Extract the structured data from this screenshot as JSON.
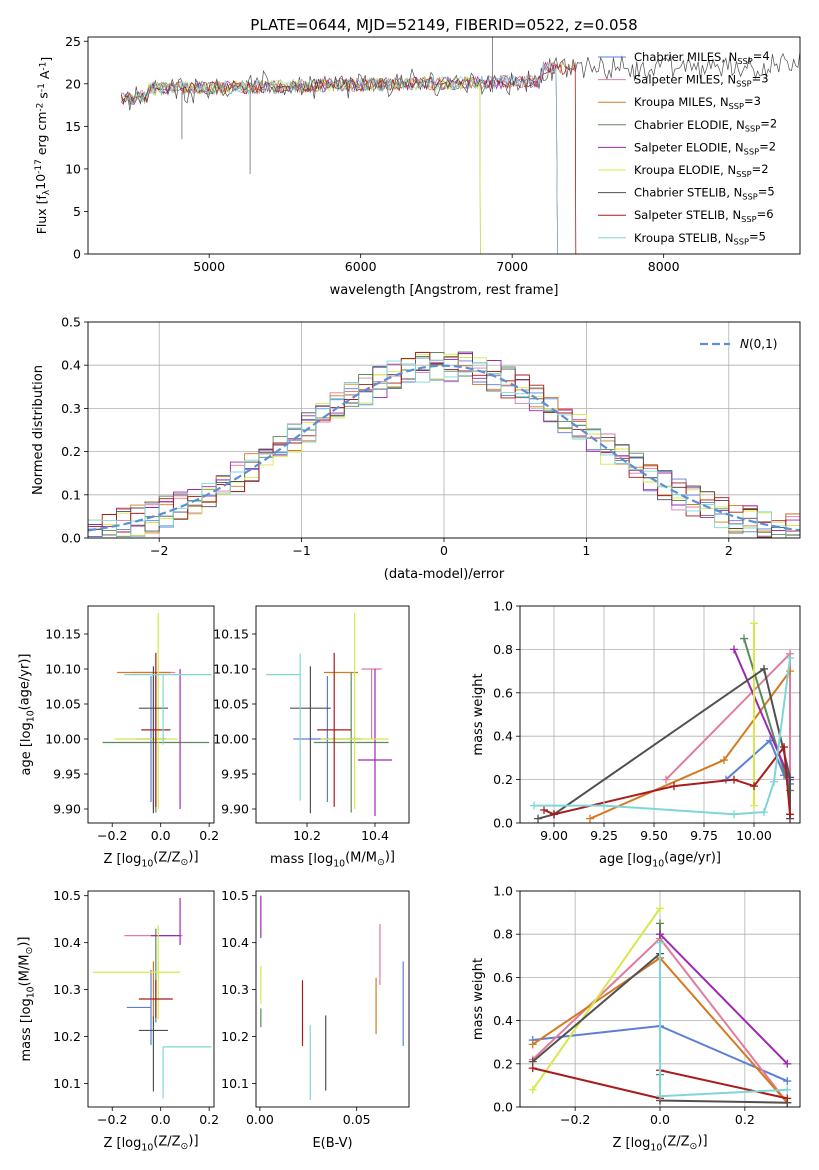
{
  "figure_title": "PLATE=0644, MJD=52149, FIBERID=0522, z=0.058",
  "colors": {
    "Chabrier MILES": "#5b7fd6",
    "Salpeter MILES": "#e17c9c",
    "Kroupa MILES": "#d47a22",
    "Chabrier ELODIE": "#5a8a5a",
    "Salpeter ELODIE": "#9c2ab0",
    "Kroupa ELODIE": "#d8e84a",
    "Chabrier STELIB": "#505050",
    "Salpeter STELIB": "#a81c1c",
    "Kroupa STELIB": "#7fd6d6",
    "gauss": "#5b8fd6"
  },
  "chart_data": [
    {
      "type": "line",
      "title": "PLATE=0644, MJD=52149, FIBERID=0522, z=0.058",
      "xlabel": "wavelength [Angstrom, rest frame]",
      "ylabel": "Flux [f$_\\lambda$10$^{-17}$ erg cm$^{-2}$ s$^{-1}$ A$^{-1}$]",
      "xlim": [
        4200,
        8900
      ],
      "ylim": [
        0,
        25.5
      ],
      "xticks": [
        5000,
        6000,
        7000,
        8000
      ],
      "yticks": [
        0,
        5,
        10,
        15,
        20,
        25
      ],
      "legend": [
        "Chabrier MILES, N$_{SSP}$=4",
        "Salpeter MILES, N$_{SSP}$=3",
        "Kroupa MILES, N$_{SSP}$=3",
        "Chabrier ELODIE, N$_{SSP}$=2",
        "Salpeter ELODIE, N$_{SSP}$=2",
        "Kroupa ELODIE, N$_{SSP}$=2",
        "Chabrier STELIB, N$_{SSP}$=5",
        "Salpeter STELIB, N$_{SSP}$=6",
        "Kroupa STELIB, N$_{SSP}$=5"
      ],
      "legend_placement": "upper right",
      "grid": false
    },
    {
      "type": "step-histogram",
      "xlabel": "(data-model)/error",
      "ylabel": "Normed distribution",
      "xlim": [
        -2.5,
        2.5
      ],
      "ylim": [
        0,
        0.5
      ],
      "xticks": [
        -2,
        -1,
        0,
        1,
        2
      ],
      "yticks": [
        0.0,
        0.1,
        0.2,
        0.3,
        0.4,
        0.5
      ],
      "legend": [
        "$\\mathcal{N}(0,1)$"
      ],
      "legend_placement": "upper right",
      "grid": true
    },
    {
      "type": "errorbar",
      "xlabel": "Z [log$_{10}$(Z/Z$_\\odot$)]",
      "ylabel": "age  [log$_{10}$(age/yr)]",
      "xlim": [
        -0.3,
        0.22
      ],
      "ylim": [
        9.88,
        10.19
      ],
      "xticks": [
        -0.2,
        0.0,
        0.2
      ],
      "yticks": [
        9.9,
        9.95,
        10.0,
        10.05,
        10.1,
        10.15
      ],
      "points": [
        {
          "series": "Chabrier MILES",
          "x": -0.04,
          "xerr": [
            0.06,
            0.06
          ],
          "y": 10.0,
          "yerr": [
            0.09,
            0.09
          ]
        },
        {
          "series": "Salpeter MILES",
          "x": -0.03,
          "xerr": [
            0.09,
            0.09
          ],
          "y": 10.095,
          "yerr": [
            0.195,
            0.0
          ]
        },
        {
          "series": "Kroupa MILES",
          "x": -0.07,
          "xerr": [
            0.11,
            0.11
          ],
          "y": 10.095,
          "yerr": [
            0.0,
            0.0
          ]
        },
        {
          "series": "Chabrier ELODIE",
          "x": -0.02,
          "xerr": [
            0.22,
            0.22
          ],
          "y": 9.995,
          "yerr": [
            0.1,
            0.1
          ]
        },
        {
          "series": "Salpeter ELODIE",
          "x": 0.08,
          "xerr": [
            0.0,
            0.0
          ],
          "y": 10.0,
          "yerr": [
            0.1,
            0.1
          ]
        },
        {
          "series": "Kroupa ELODIE",
          "x": -0.01,
          "xerr": [
            0.18,
            0.08
          ],
          "y": 10.0,
          "yerr": [
            0.1,
            0.18
          ]
        },
        {
          "series": "Chabrier STELIB",
          "x": -0.03,
          "xerr": [
            0.06,
            0.06
          ],
          "y": 10.044,
          "yerr": [
            0.15,
            0.06
          ]
        },
        {
          "series": "Salpeter STELIB",
          "x": -0.02,
          "xerr": [
            0.06,
            0.06
          ],
          "y": 10.013,
          "yerr": [
            0.11,
            0.11
          ]
        },
        {
          "series": "Kroupa STELIB",
          "x": 0.01,
          "xerr": [
            0.16,
            0.2
          ],
          "y": 10.092,
          "yerr": [
            0.1,
            0.0
          ]
        }
      ]
    },
    {
      "type": "errorbar",
      "xlabel": "mass [log$_{10}$(M/M$_\\odot$)]",
      "ylabel": "",
      "xlim": [
        10.05,
        10.5
      ],
      "ylim": [
        9.88,
        10.19
      ],
      "xticks": [
        10.2,
        10.4
      ],
      "yticks": [
        9.9,
        9.95,
        10.0,
        10.05,
        10.1,
        10.15
      ],
      "points": [
        {
          "series": "Chabrier MILES",
          "x": 10.26,
          "xerr": [
            0.1,
            0.1
          ],
          "y": 10.0,
          "yerr": [
            0.09,
            0.09
          ]
        },
        {
          "series": "Salpeter MILES",
          "x": 10.39,
          "xerr": [
            0.03,
            0.03
          ],
          "y": 10.1,
          "yerr": [
            0.1,
            0.0
          ]
        },
        {
          "series": "Kroupa MILES",
          "x": 10.3,
          "xerr": [
            0.05,
            0.05
          ],
          "y": 10.095,
          "yerr": [
            0.0,
            0.0
          ]
        },
        {
          "series": "Chabrier ELODIE",
          "x": 10.33,
          "xerr": [
            0.11,
            0.11
          ],
          "y": 9.995,
          "yerr": [
            0.1,
            0.1
          ]
        },
        {
          "series": "Salpeter ELODIE",
          "x": 10.4,
          "xerr": [
            0.05,
            0.05
          ],
          "y": 9.97,
          "yerr": [
            0.08,
            0.13
          ]
        },
        {
          "series": "Kroupa ELODIE",
          "x": 10.34,
          "xerr": [
            0.1,
            0.1
          ],
          "y": 10.0,
          "yerr": [
            0.1,
            0.18
          ]
        },
        {
          "series": "Chabrier STELIB",
          "x": 10.21,
          "xerr": [
            0.06,
            0.06
          ],
          "y": 10.044,
          "yerr": [
            0.15,
            0.06
          ]
        },
        {
          "series": "Salpeter STELIB",
          "x": 10.28,
          "xerr": [
            0.05,
            0.05
          ],
          "y": 10.013,
          "yerr": [
            0.11,
            0.11
          ]
        },
        {
          "series": "Kroupa STELIB",
          "x": 10.18,
          "xerr": [
            0.1,
            0.0
          ],
          "y": 10.092,
          "yerr": [
            0.18,
            0.03
          ]
        }
      ]
    },
    {
      "type": "line",
      "xlabel": "age  [log$_{10}$(age/yr)]",
      "ylabel": "mass weight",
      "xlim": [
        8.83,
        10.23
      ],
      "ylim": [
        0.0,
        1.0
      ],
      "xticks": [
        9.0,
        9.25,
        9.5,
        9.75,
        10.0
      ],
      "yticks": [
        0.0,
        0.2,
        0.4,
        0.6,
        0.8,
        1.0
      ],
      "grid": true,
      "series": [
        {
          "series": "Chabrier MILES",
          "points": [
            [
              9.86,
              0.2
            ],
            [
              10.08,
              0.38
            ],
            [
              10.15,
              0.22
            ],
            [
              10.18,
              0.18
            ]
          ]
        },
        {
          "series": "Salpeter MILES",
          "points": [
            [
              9.56,
              0.2
            ],
            [
              10.18,
              0.78
            ],
            [
              10.18,
              0.02
            ]
          ]
        },
        {
          "series": "Kroupa MILES",
          "points": [
            [
              9.18,
              0.02
            ],
            [
              9.85,
              0.29
            ],
            [
              10.18,
              0.7
            ]
          ]
        },
        {
          "series": "Chabrier ELODIE",
          "points": [
            [
              9.95,
              0.85
            ],
            [
              10.18,
              0.15
            ]
          ]
        },
        {
          "series": "Salpeter ELODIE",
          "points": [
            [
              9.9,
              0.8
            ],
            [
              10.18,
              0.2
            ]
          ]
        },
        {
          "series": "Kroupa ELODIE",
          "points": [
            [
              10.0,
              0.92
            ],
            [
              10.0,
              0.08
            ]
          ]
        },
        {
          "series": "Chabrier STELIB",
          "points": [
            [
              8.92,
              0.02
            ],
            [
              9.0,
              0.04
            ],
            [
              10.05,
              0.71
            ],
            [
              10.18,
              0.21
            ],
            [
              10.18,
              0.02
            ]
          ]
        },
        {
          "series": "Salpeter STELIB",
          "points": [
            [
              8.95,
              0.06
            ],
            [
              9.0,
              0.04
            ],
            [
              9.6,
              0.17
            ],
            [
              9.9,
              0.2
            ],
            [
              10.0,
              0.17
            ],
            [
              10.15,
              0.35
            ],
            [
              10.18,
              0.04
            ]
          ]
        },
        {
          "series": "Kroupa STELIB",
          "points": [
            [
              8.9,
              0.08
            ],
            [
              9.25,
              0.08
            ],
            [
              9.9,
              0.04
            ],
            [
              10.05,
              0.05
            ],
            [
              10.1,
              0.19
            ],
            [
              10.18,
              0.76
            ]
          ]
        }
      ]
    },
    {
      "type": "errorbar",
      "xlabel": "Z [log$_{10}$(Z/Z$_\\odot$)]",
      "ylabel": "mass [log$_{10}$(M/M$_\\odot$)]",
      "xlim": [
        -0.3,
        0.22
      ],
      "ylim": [
        10.05,
        10.51
      ],
      "xticks": [
        -0.2,
        0.0,
        0.2
      ],
      "yticks": [
        10.1,
        10.2,
        10.3,
        10.4,
        10.5
      ],
      "points": [
        {
          "series": "Chabrier MILES",
          "x": -0.04,
          "xerr": [
            0.1,
            0.0
          ],
          "y": 10.262,
          "yerr": [
            0.08,
            0.08
          ]
        },
        {
          "series": "Salpeter MILES",
          "x": -0.03,
          "xerr": [
            0.12,
            0.12
          ],
          "y": 10.415,
          "yerr": [
            0.0,
            0.0
          ]
        },
        {
          "series": "Kroupa MILES",
          "x": -0.03,
          "xerr": [
            0.0,
            0.0
          ],
          "y": 10.3,
          "yerr": [
            0.06,
            0.06
          ]
        },
        {
          "series": "Chabrier ELODIE",
          "x": -0.02,
          "xerr": [
            0.0,
            0.0
          ],
          "y": 10.33,
          "yerr": [
            0.1,
            0.1
          ]
        },
        {
          "series": "Salpeter ELODIE",
          "x": 0.08,
          "xerr": [
            0.12,
            0.0
          ],
          "y": 10.415,
          "yerr": [
            0.02,
            0.08
          ]
        },
        {
          "series": "Kroupa ELODIE",
          "x": -0.01,
          "xerr": [
            0.27,
            0.09
          ],
          "y": 10.337,
          "yerr": [
            0.1,
            0.1
          ]
        },
        {
          "series": "Chabrier STELIB",
          "x": -0.03,
          "xerr": [
            0.06,
            0.06
          ],
          "y": 10.213,
          "yerr": [
            0.13,
            0.03
          ]
        },
        {
          "series": "Salpeter STELIB",
          "x": -0.02,
          "xerr": [
            0.07,
            0.07
          ],
          "y": 10.28,
          "yerr": [
            0.04,
            0.04
          ]
        },
        {
          "series": "Kroupa STELIB",
          "x": 0.01,
          "xerr": [
            0.0,
            0.2
          ],
          "y": 10.178,
          "yerr": [
            0.11,
            0.0
          ]
        }
      ]
    },
    {
      "type": "errorbar",
      "xlabel": "E(B-V)",
      "ylabel": "",
      "xlim": [
        -0.002,
        0.077
      ],
      "ylim": [
        10.05,
        10.51
      ],
      "xticks": [
        0.0,
        0.05
      ],
      "yticks": [
        10.1,
        10.2,
        10.3,
        10.4,
        10.5
      ],
      "points": [
        {
          "series": "Chabrier MILES",
          "x": 0.074,
          "y": 10.27,
          "yerr": [
            0.09,
            0.09
          ]
        },
        {
          "series": "Salpeter MILES",
          "x": 0.062,
          "y": 10.375,
          "yerr": [
            0.065,
            0.065
          ]
        },
        {
          "series": "Kroupa MILES",
          "x": 0.06,
          "y": 10.265,
          "yerr": [
            0.06,
            0.06
          ]
        },
        {
          "series": "Chabrier ELODIE",
          "x": 0.0005,
          "y": 10.26,
          "yerr": [
            0.04,
            0.0
          ]
        },
        {
          "series": "Salpeter ELODIE",
          "x": 0.0005,
          "y": 10.45,
          "yerr": [
            0.04,
            0.05
          ]
        },
        {
          "series": "Kroupa ELODIE",
          "x": 0.0005,
          "y": 10.31,
          "yerr": [
            0.04,
            0.04
          ]
        },
        {
          "series": "Chabrier STELIB",
          "x": 0.034,
          "y": 10.165,
          "yerr": [
            0.08,
            0.08
          ]
        },
        {
          "series": "Salpeter STELIB",
          "x": 0.022,
          "y": 10.25,
          "yerr": [
            0.07,
            0.07
          ]
        },
        {
          "series": "Kroupa STELIB",
          "x": 0.026,
          "y": 10.145,
          "yerr": [
            0.08,
            0.08
          ]
        }
      ]
    },
    {
      "type": "line",
      "xlabel": "Z [log$_{10}$(Z/Z$_\\odot$)]",
      "ylabel": "mass weight",
      "xlim": [
        -0.33,
        0.33
      ],
      "ylim": [
        0.0,
        1.0
      ],
      "xticks": [
        -0.2,
        0.0,
        0.2
      ],
      "yticks": [
        0.0,
        0.2,
        0.4,
        0.6,
        0.8,
        1.0
      ],
      "grid": true,
      "series": [
        {
          "series": "Chabrier MILES",
          "points": [
            [
              -0.3,
              0.31
            ],
            [
              0.0,
              0.375
            ],
            [
              0.3,
              0.12
            ]
          ]
        },
        {
          "series": "Salpeter MILES",
          "points": [
            [
              -0.3,
              0.22
            ],
            [
              0.0,
              0.78
            ],
            [
              0.3,
              0.02
            ]
          ]
        },
        {
          "series": "Kroupa MILES",
          "points": [
            [
              -0.3,
              0.29
            ],
            [
              0.0,
              0.69
            ],
            [
              0.3,
              0.02
            ]
          ]
        },
        {
          "series": "Chabrier ELODIE",
          "points": [
            [
              0.0,
              0.85
            ],
            [
              0.0,
              0.15
            ]
          ]
        },
        {
          "series": "Salpeter ELODIE",
          "points": [
            [
              0.0,
              0.8
            ],
            [
              0.3,
              0.2
            ]
          ]
        },
        {
          "series": "Kroupa ELODIE",
          "points": [
            [
              -0.3,
              0.08
            ],
            [
              0.0,
              0.92
            ]
          ]
        },
        {
          "series": "Chabrier STELIB",
          "points": [
            [
              -0.3,
              0.21
            ],
            [
              0.0,
              0.71
            ],
            [
              0.0,
              0.03
            ],
            [
              0.3,
              0.02
            ]
          ]
        },
        {
          "series": "Salpeter STELIB",
          "points": [
            [
              -0.3,
              0.18
            ],
            [
              0.0,
              0.04
            ],
            [
              0.0,
              0.17
            ],
            [
              0.3,
              0.04
            ]
          ]
        },
        {
          "series": "Kroupa STELIB",
          "points": [
            [
              0.0,
              0.76
            ],
            [
              0.0,
              0.05
            ],
            [
              0.3,
              0.08
            ]
          ]
        }
      ]
    }
  ]
}
